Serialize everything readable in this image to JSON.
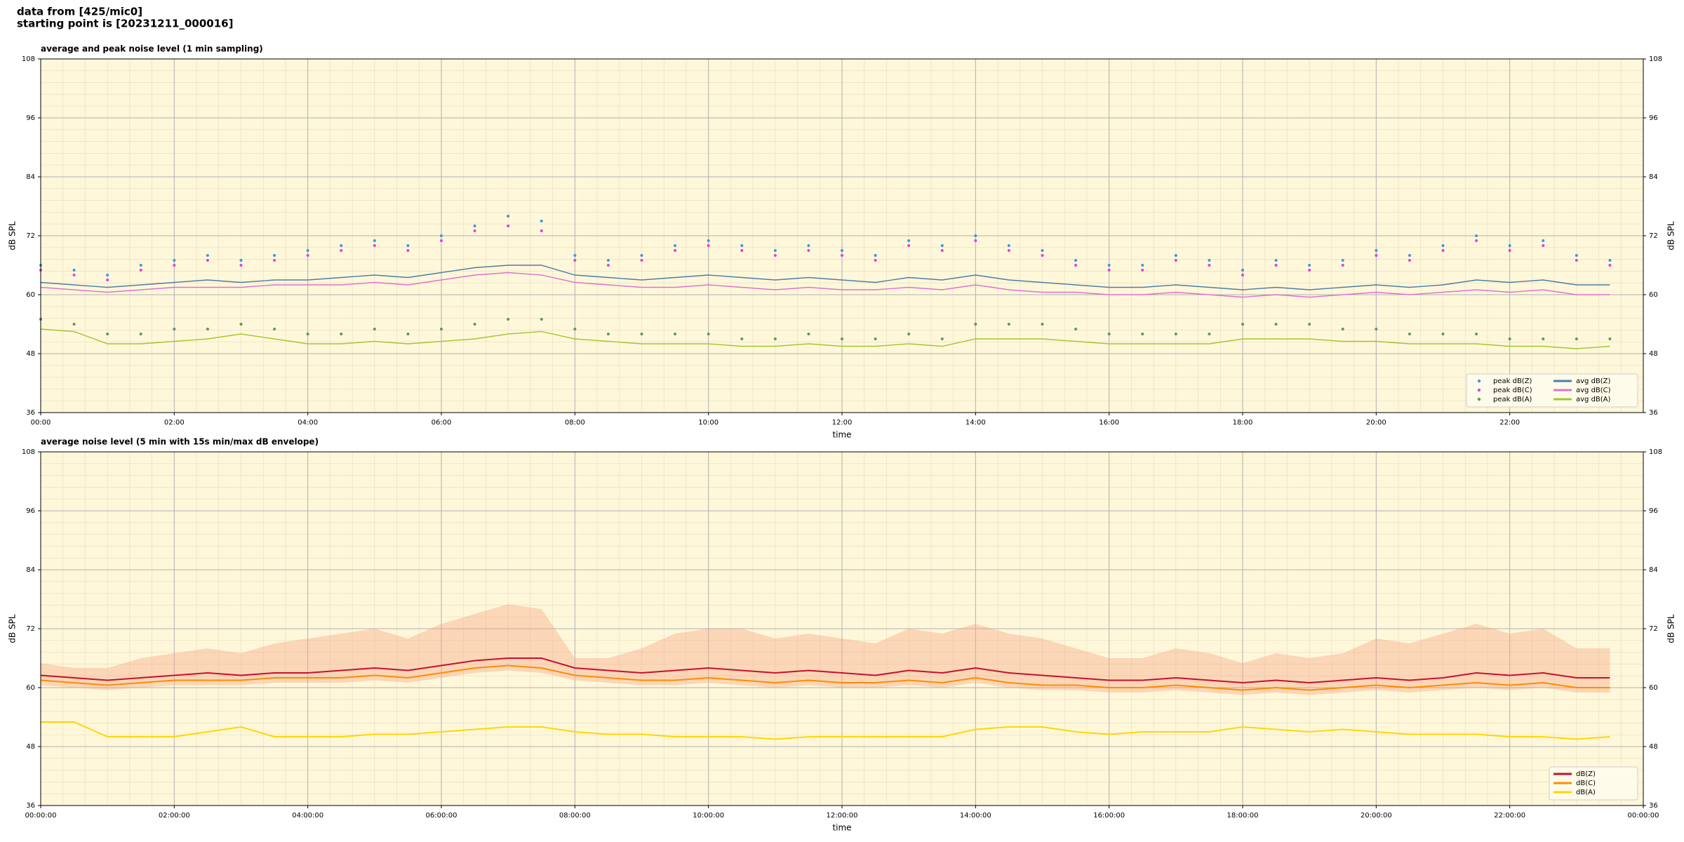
{
  "header": {
    "lines": [
      "data from [425/mic0]",
      "starting point is [20231211_000016]"
    ]
  },
  "chart_data": [
    {
      "type": "line",
      "title": "average and peak noise level (1 min sampling)",
      "xlabel": "time",
      "ylabel": "dB SPL",
      "xlim": [
        0,
        24
      ],
      "ylim": [
        36,
        108
      ],
      "yticks": [
        36,
        48,
        60,
        72,
        84,
        96,
        108
      ],
      "xticks": [
        {
          "value": 0,
          "label": "00:00"
        },
        {
          "value": 2,
          "label": "02:00"
        },
        {
          "value": 4,
          "label": "04:00"
        },
        {
          "value": 6,
          "label": "06:00"
        },
        {
          "value": 8,
          "label": "08:00"
        },
        {
          "value": 10,
          "label": "10:00"
        },
        {
          "value": 12,
          "label": "12:00"
        },
        {
          "value": 14,
          "label": "14:00"
        },
        {
          "value": 16,
          "label": "16:00"
        },
        {
          "value": 18,
          "label": "18:00"
        },
        {
          "value": 20,
          "label": "20:00"
        },
        {
          "value": 22,
          "label": "22:00"
        }
      ],
      "grid": true,
      "legend": "lower right",
      "legend_columns": 2,
      "background": "#fff7da",
      "x": [
        0,
        0.5,
        1,
        1.5,
        2,
        2.5,
        3,
        3.5,
        4,
        4.5,
        5,
        5.5,
        6,
        6.5,
        7,
        7.5,
        8,
        8.5,
        9,
        9.5,
        10,
        10.5,
        11,
        11.5,
        12,
        12.5,
        13,
        13.5,
        14,
        14.5,
        15,
        15.5,
        16,
        16.5,
        17,
        17.5,
        18,
        18.5,
        19,
        19.5,
        20,
        20.5,
        21,
        21.5,
        22,
        22.5,
        23,
        23.5
      ],
      "series": [
        {
          "name": "peak dB(Z)",
          "type": "scatter",
          "color": "#3a9ad9",
          "values": [
            66,
            65,
            64,
            66,
            67,
            68,
            67,
            68,
            69,
            70,
            71,
            70,
            72,
            74,
            76,
            75,
            68,
            67,
            68,
            70,
            71,
            70,
            69,
            70,
            69,
            68,
            71,
            70,
            72,
            70,
            69,
            67,
            66,
            66,
            68,
            67,
            65,
            67,
            66,
            67,
            69,
            68,
            70,
            72,
            70,
            71,
            68,
            67
          ]
        },
        {
          "name": "peak dB(C)",
          "type": "scatter",
          "color": "#e040e0",
          "values": [
            65,
            64,
            63,
            65,
            66,
            67,
            66,
            67,
            68,
            69,
            70,
            69,
            71,
            73,
            74,
            73,
            67,
            66,
            67,
            69,
            70,
            69,
            68,
            69,
            68,
            67,
            70,
            69,
            71,
            69,
            68,
            66,
            65,
            65,
            67,
            66,
            64,
            66,
            65,
            66,
            68,
            67,
            69,
            71,
            69,
            70,
            67,
            66
          ]
        },
        {
          "name": "peak dB(A)",
          "type": "scatter",
          "color": "#5a9a5a",
          "values": [
            55,
            54,
            52,
            52,
            53,
            53,
            54,
            53,
            52,
            52,
            53,
            52,
            53,
            54,
            55,
            55,
            53,
            52,
            52,
            52,
            52,
            51,
            51,
            52,
            51,
            51,
            52,
            51,
            54,
            54,
            54,
            53,
            52,
            52,
            52,
            52,
            54,
            54,
            54,
            53,
            53,
            52,
            52,
            52,
            51,
            51,
            51,
            51
          ]
        },
        {
          "name": "avg dB(Z)",
          "color": "#4a7fa8",
          "values": [
            62.5,
            62,
            61.5,
            62,
            62.5,
            63,
            62.5,
            63,
            63,
            63.5,
            64,
            63.5,
            64.5,
            65.5,
            66,
            66,
            64,
            63.5,
            63,
            63.5,
            64,
            63.5,
            63,
            63.5,
            63,
            62.5,
            63.5,
            63,
            64,
            63,
            62.5,
            62,
            61.5,
            61.5,
            62,
            61.5,
            61,
            61.5,
            61,
            61.5,
            62,
            61.5,
            62,
            63,
            62.5,
            63,
            62,
            62
          ]
        },
        {
          "name": "avg dB(C)",
          "color": "#e070d0",
          "values": [
            61.5,
            61,
            60.5,
            61,
            61.5,
            61.5,
            61.5,
            62,
            62,
            62,
            62.5,
            62,
            63,
            64,
            64.5,
            64,
            62.5,
            62,
            61.5,
            61.5,
            62,
            61.5,
            61,
            61.5,
            61,
            61,
            61.5,
            61,
            62,
            61,
            60.5,
            60.5,
            60,
            60,
            60.5,
            60,
            59.5,
            60,
            59.5,
            60,
            60.5,
            60,
            60.5,
            61,
            60.5,
            61,
            60,
            60
          ]
        },
        {
          "name": "avg dB(A)",
          "color": "#a0c830",
          "values": [
            53,
            52.5,
            50,
            50,
            50.5,
            51,
            52,
            51,
            50,
            50,
            50.5,
            50,
            50.5,
            51,
            52,
            52.5,
            51,
            50.5,
            50,
            50,
            50,
            49.5,
            49.5,
            50,
            49.5,
            49.5,
            50,
            49.5,
            51,
            51,
            51,
            50.5,
            50,
            50,
            50,
            50,
            51,
            51,
            51,
            50.5,
            50.5,
            50,
            50,
            50,
            49.5,
            49.5,
            49,
            49.5
          ]
        }
      ]
    },
    {
      "type": "line",
      "title": "average noise level (5 min with 15s min/max dB envelope)",
      "xlabel": "time",
      "ylabel": "dB SPL",
      "xlim": [
        0,
        24
      ],
      "ylim": [
        36,
        108
      ],
      "yticks": [
        36,
        48,
        60,
        72,
        84,
        96,
        108
      ],
      "xticks": [
        {
          "value": 0,
          "label": "00:00:00"
        },
        {
          "value": 2,
          "label": "02:00:00"
        },
        {
          "value": 4,
          "label": "04:00:00"
        },
        {
          "value": 6,
          "label": "06:00:00"
        },
        {
          "value": 8,
          "label": "08:00:00"
        },
        {
          "value": 10,
          "label": "10:00:00"
        },
        {
          "value": 12,
          "label": "12:00:00"
        },
        {
          "value": 14,
          "label": "14:00:00"
        },
        {
          "value": 16,
          "label": "16:00:00"
        },
        {
          "value": 18,
          "label": "18:00:00"
        },
        {
          "value": 20,
          "label": "20:00:00"
        },
        {
          "value": 22,
          "label": "22:00:00"
        },
        {
          "value": 24,
          "label": "00:00:00"
        }
      ],
      "grid": true,
      "legend": "lower right",
      "legend_columns": 1,
      "background": "#fff7da",
      "x": [
        0,
        0.5,
        1,
        1.5,
        2,
        2.5,
        3,
        3.5,
        4,
        4.5,
        5,
        5.5,
        6,
        6.5,
        7,
        7.5,
        8,
        8.5,
        9,
        9.5,
        10,
        10.5,
        11,
        11.5,
        12,
        12.5,
        13,
        13.5,
        14,
        14.5,
        15,
        15.5,
        16,
        16.5,
        17,
        17.5,
        18,
        18.5,
        19,
        19.5,
        20,
        20.5,
        21,
        21.5,
        22,
        22.5,
        23,
        23.5
      ],
      "band": {
        "color": "#f4a582",
        "upper": [
          65,
          64,
          64,
          66,
          67,
          68,
          67,
          69,
          70,
          71,
          72,
          70,
          73,
          75,
          77,
          76,
          66,
          66,
          68,
          71,
          72,
          72,
          70,
          71,
          70,
          69,
          72,
          71,
          73,
          71,
          70,
          68,
          66,
          66,
          68,
          67,
          65,
          67,
          66,
          67,
          70,
          69,
          71,
          73,
          71,
          72,
          68,
          68
        ],
        "lower": [
          60.5,
          60,
          59.5,
          60,
          60.5,
          60.5,
          60.5,
          61,
          61,
          61,
          61.5,
          61,
          62,
          63,
          63.5,
          63,
          61.5,
          61,
          60.5,
          60.5,
          61,
          60.5,
          60,
          60.5,
          60,
          60,
          60.5,
          60,
          61,
          60,
          59.5,
          59.5,
          59,
          59,
          59.5,
          59,
          58.5,
          59,
          58.5,
          59,
          59.5,
          59,
          59.5,
          60,
          59.5,
          60,
          59,
          59
        ]
      },
      "series": [
        {
          "name": "dB(Z)",
          "color": "#c8102e",
          "values": [
            62.5,
            62,
            61.5,
            62,
            62.5,
            63,
            62.5,
            63,
            63,
            63.5,
            64,
            63.5,
            64.5,
            65.5,
            66,
            66,
            64,
            63.5,
            63,
            63.5,
            64,
            63.5,
            63,
            63.5,
            63,
            62.5,
            63.5,
            63,
            64,
            63,
            62.5,
            62,
            61.5,
            61.5,
            62,
            61.5,
            61,
            61.5,
            61,
            61.5,
            62,
            61.5,
            62,
            63,
            62.5,
            63,
            62,
            62
          ]
        },
        {
          "name": "dB(C)",
          "color": "#ff8c00",
          "values": [
            61.5,
            61,
            60.5,
            61,
            61.5,
            61.5,
            61.5,
            62,
            62,
            62,
            62.5,
            62,
            63,
            64,
            64.5,
            64,
            62.5,
            62,
            61.5,
            61.5,
            62,
            61.5,
            61,
            61.5,
            61,
            61,
            61.5,
            61,
            62,
            61,
            60.5,
            60.5,
            60,
            60,
            60.5,
            60,
            59.5,
            60,
            59.5,
            60,
            60.5,
            60,
            60.5,
            61,
            60.5,
            61,
            60,
            60
          ]
        },
        {
          "name": "dB(A)",
          "color": "#ffd700",
          "values": [
            53,
            53,
            50,
            50,
            50,
            51,
            52,
            50,
            50,
            50,
            50.5,
            50.5,
            51,
            51.5,
            52,
            52,
            51,
            50.5,
            50.5,
            50,
            50,
            50,
            49.5,
            50,
            50,
            50,
            50,
            50,
            51.5,
            52,
            52,
            51,
            50.5,
            51,
            51,
            51,
            52,
            51.5,
            51,
            51.5,
            51,
            50.5,
            50.5,
            50.5,
            50,
            50,
            49.5,
            50
          ]
        }
      ]
    }
  ]
}
